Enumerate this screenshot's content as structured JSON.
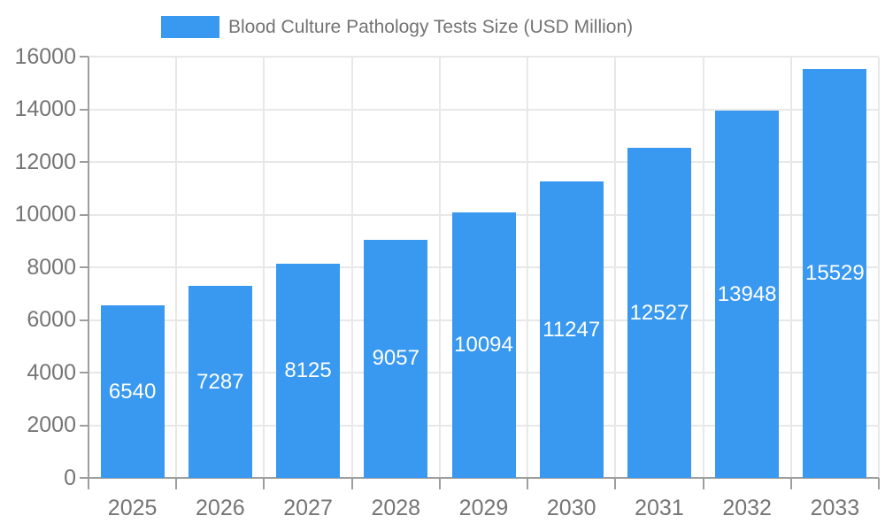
{
  "chart_data": {
    "type": "bar",
    "legend": "Blood Culture Pathology Tests Size (USD Million)",
    "categories": [
      "2025",
      "2026",
      "2027",
      "2028",
      "2029",
      "2030",
      "2031",
      "2032",
      "2033"
    ],
    "values": [
      6540,
      7287,
      8125,
      9057,
      10094,
      11247,
      12527,
      13948,
      15529
    ],
    "ylim": [
      0,
      16000
    ],
    "ytick_step": 2000,
    "ytick_labels": [
      "0",
      "2000",
      "4000",
      "6000",
      "8000",
      "10000",
      "12000",
      "14000",
      "16000"
    ],
    "grid": true,
    "legend_position": "top",
    "value_label_style": "white, centered inside bar"
  },
  "colors": {
    "bar": "#3999F0",
    "grid": "#e8e8e8",
    "axis": "#9e9e9e",
    "tick_label": "#757575",
    "legend_text": "#737373",
    "value_label": "#ffffff",
    "background": "#ffffff"
  }
}
